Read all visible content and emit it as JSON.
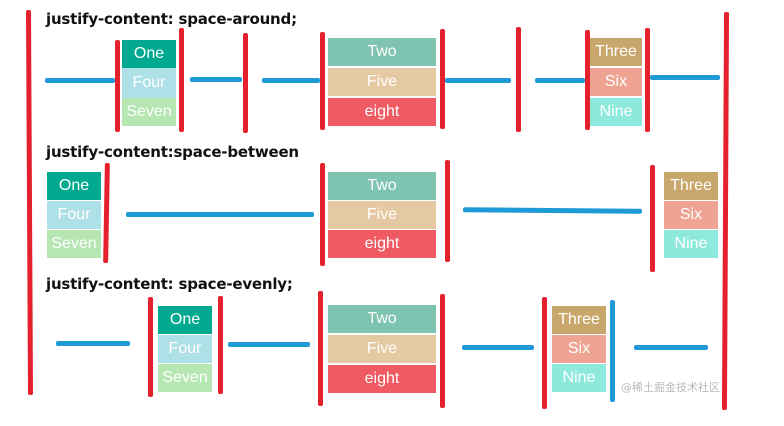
{
  "rows": [
    {
      "heading": "justify-content: space-around;",
      "items": [
        "One",
        "Two",
        "Three",
        "Four",
        "Five",
        "Six",
        "Seven",
        "eight",
        "Nine"
      ]
    },
    {
      "heading": "justify-content:space-between",
      "items": [
        "One",
        "Two",
        "Three",
        "Four",
        "Five",
        "Six",
        "Seven",
        "eight",
        "Nine"
      ]
    },
    {
      "heading": "justify-content: space-evenly;",
      "items": [
        "One",
        "Two",
        "Three",
        "Four",
        "Five",
        "Six",
        "Seven",
        "eight",
        "Nine"
      ]
    }
  ],
  "watermark": "@稀土掘金技术社区",
  "colors": {
    "annotation_red": "#e4212c",
    "annotation_blue": "#1e9ad6",
    "one": "#00a98f",
    "four": "#aee0e8",
    "seven": "#b6e6b2",
    "two": "#7fc4b0",
    "five": "#e5c9a3",
    "eight": "#f05a63",
    "three": "#c9a76c",
    "six": "#eea393",
    "nine": "#8ce9dc"
  }
}
